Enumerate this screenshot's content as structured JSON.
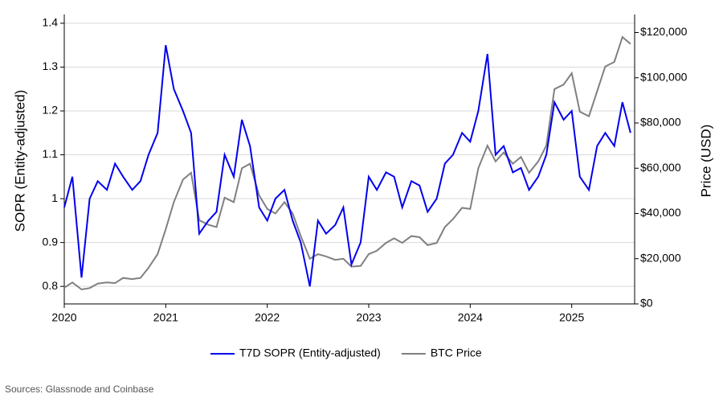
{
  "chart_data": {
    "type": "line",
    "x_label": null,
    "y_label": "SOPR (Entity-adjusted)",
    "y2_label": "Price (USD)",
    "source": "Sources: Glassnode and Coinbase",
    "x": [
      2020.0,
      2020.08,
      2020.17,
      2020.25,
      2020.33,
      2020.42,
      2020.5,
      2020.58,
      2020.67,
      2020.75,
      2020.83,
      2020.92,
      2021.0,
      2021.08,
      2021.17,
      2021.25,
      2021.33,
      2021.42,
      2021.5,
      2021.58,
      2021.67,
      2021.75,
      2021.83,
      2021.92,
      2022.0,
      2022.08,
      2022.17,
      2022.25,
      2022.33,
      2022.42,
      2022.5,
      2022.58,
      2022.67,
      2022.75,
      2022.83,
      2022.92,
      2023.0,
      2023.08,
      2023.17,
      2023.25,
      2023.33,
      2023.42,
      2023.5,
      2023.58,
      2023.67,
      2023.75,
      2023.83,
      2023.92,
      2024.0,
      2024.08,
      2024.17,
      2024.25,
      2024.33,
      2024.42,
      2024.5,
      2024.58,
      2024.67,
      2024.75,
      2024.83,
      2024.92,
      2025.0,
      2025.08,
      2025.17,
      2025.25,
      2025.33,
      2025.42,
      2025.5,
      2025.58
    ],
    "series": [
      {
        "name": "T7D SOPR (Entity-adjusted)",
        "color": "#0000ee",
        "axis": "y",
        "values": [
          0.98,
          1.05,
          0.82,
          1.0,
          1.04,
          1.02,
          1.08,
          1.05,
          1.02,
          1.04,
          1.1,
          1.15,
          1.35,
          1.25,
          1.2,
          1.15,
          0.92,
          0.95,
          0.97,
          1.1,
          1.05,
          1.18,
          1.12,
          0.98,
          0.95,
          1.0,
          1.02,
          0.95,
          0.9,
          0.8,
          0.95,
          0.92,
          0.94,
          0.98,
          0.85,
          0.9,
          1.05,
          1.02,
          1.06,
          1.05,
          0.98,
          1.04,
          1.03,
          0.97,
          1.0,
          1.08,
          1.1,
          1.15,
          1.13,
          1.2,
          1.33,
          1.1,
          1.12,
          1.06,
          1.07,
          1.02,
          1.05,
          1.1,
          1.22,
          1.18,
          1.2,
          1.05,
          1.02,
          1.12,
          1.15,
          1.12,
          1.22,
          1.15
        ]
      },
      {
        "name": "BTC Price",
        "color": "#808080",
        "axis": "y2",
        "values": [
          7200,
          9500,
          6400,
          7000,
          9000,
          9500,
          9200,
          11500,
          11000,
          11500,
          16000,
          22000,
          33000,
          45000,
          55000,
          58000,
          37000,
          35000,
          34000,
          47000,
          45000,
          60000,
          62000,
          48000,
          42000,
          40000,
          45000,
          40000,
          30000,
          20000,
          22000,
          21000,
          19500,
          20000,
          16500,
          16800,
          22000,
          23500,
          27000,
          29000,
          27000,
          30000,
          29500,
          26000,
          27000,
          34000,
          37500,
          42500,
          42000,
          60000,
          70000,
          63000,
          67000,
          62000,
          65000,
          58000,
          63000,
          70000,
          95000,
          97000,
          102000,
          85000,
          83000,
          94000,
          105000,
          107000,
          118000,
          115000
        ]
      }
    ],
    "xlim": [
      2020,
      2025.62
    ],
    "xticks": [
      2020,
      2021,
      2022,
      2023,
      2024,
      2025
    ],
    "ylim": [
      0.76,
      1.42
    ],
    "yticks": [
      0.8,
      0.9,
      1,
      1.1,
      1.2,
      1.3,
      1.4
    ],
    "y2lim": [
      0,
      128000
    ],
    "y2ticks": [
      {
        "value": 0,
        "label": "$0"
      },
      {
        "value": 20000,
        "label": "$20,000"
      },
      {
        "value": 40000,
        "label": "$40,000"
      },
      {
        "value": 60000,
        "label": "$60,000"
      },
      {
        "value": 80000,
        "label": "$80,000"
      },
      {
        "value": 100000,
        "label": "$100,000"
      },
      {
        "value": 120000,
        "label": "$120,000"
      }
    ],
    "grid": true
  }
}
